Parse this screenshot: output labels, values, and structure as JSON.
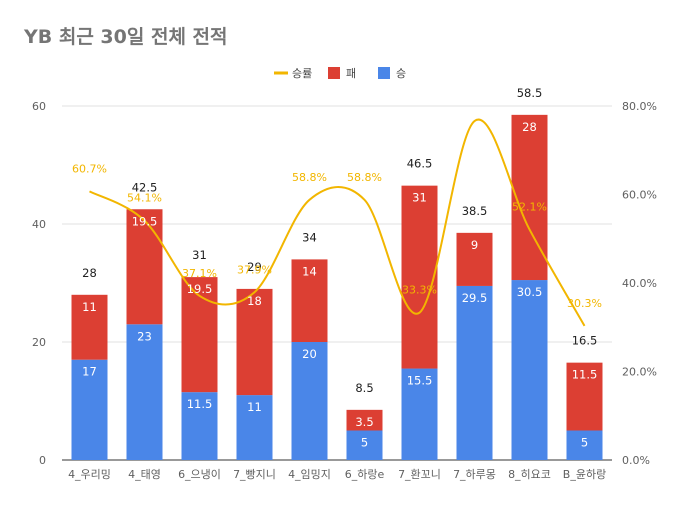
{
  "chart_data": {
    "type": "bar",
    "stacked": true,
    "title": "YB 최근 30일 전체 전적",
    "categories": [
      "4_우리밍",
      "4_태영",
      "6_으냉이",
      "7_빵지니",
      "4_임밍지",
      "6_하랑e",
      "7_환꼬니",
      "7_하루몽",
      "8_히요코",
      "B_윤하랑"
    ],
    "series": [
      {
        "name": "승",
        "type": "bar",
        "color": "#4a86e8",
        "values": [
          17,
          23,
          11.5,
          11,
          20,
          5,
          15.5,
          29.5,
          30.5,
          5
        ]
      },
      {
        "name": "패",
        "type": "bar",
        "color": "#dc3f33",
        "values": [
          11,
          19.5,
          19.5,
          18,
          14,
          3.5,
          31,
          9,
          28,
          11.5
        ]
      },
      {
        "name": "승률",
        "type": "line",
        "axis": "right",
        "color": "#f2b600",
        "values": [
          60.7,
          54.1,
          37.1,
          37.9,
          58.8,
          58.8,
          33.3,
          76.6,
          52.1,
          30.3
        ],
        "labels": [
          "60.7%",
          "54.1%",
          "37.1%",
          "37.9%",
          "58.8%",
          "58.8%",
          "33.3%",
          "",
          "52.1%",
          "30.3%"
        ]
      }
    ],
    "totals": [
      "28",
      "42.5",
      "31",
      "29",
      "34",
      "8.5",
      "46.5",
      "38.5",
      "58.5",
      "16.5"
    ],
    "bar_value_labels": {
      "승": [
        "17",
        "23",
        "11.5",
        "11",
        "20",
        "5",
        "15.5",
        "29.5",
        "30.5",
        "5"
      ],
      "패": [
        "11",
        "19.5",
        "19.5",
        "18",
        "14",
        "3.5",
        "31",
        "9",
        "28",
        "11.5"
      ]
    },
    "y_left": {
      "ylim": [
        0,
        60
      ],
      "ticks": [
        "0",
        "20",
        "40",
        "60"
      ]
    },
    "y_right": {
      "ylim": [
        0,
        80
      ],
      "ticks": [
        "0.0%",
        "20.0%",
        "40.0%",
        "60.0%",
        "80.0%"
      ]
    },
    "legend": {
      "position": "top",
      "entries": [
        "승률",
        "패",
        "승"
      ]
    },
    "grid": true
  }
}
